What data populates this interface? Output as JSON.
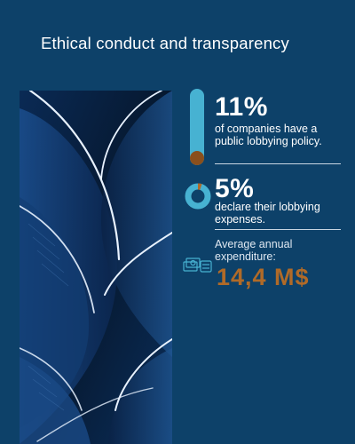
{
  "header": {
    "title": "Ethical conduct and transparency"
  },
  "stats": [
    {
      "value": "11%",
      "text": "of companies have a public lobbying policy.",
      "fill": 0.11
    },
    {
      "value": "5%",
      "text": "declare their lobbying expenses.",
      "fill": 0.05
    },
    {
      "label": "Average annual expenditure:",
      "value": "14,4 M$"
    }
  ],
  "icons": [
    "vertical-bar-gauge-icon",
    "donut-chart-icon",
    "money-bills-icon"
  ],
  "colors": {
    "background": "#0d4169",
    "accent_blue": "#47b2d2",
    "accent_brown": "#b06a28"
  }
}
